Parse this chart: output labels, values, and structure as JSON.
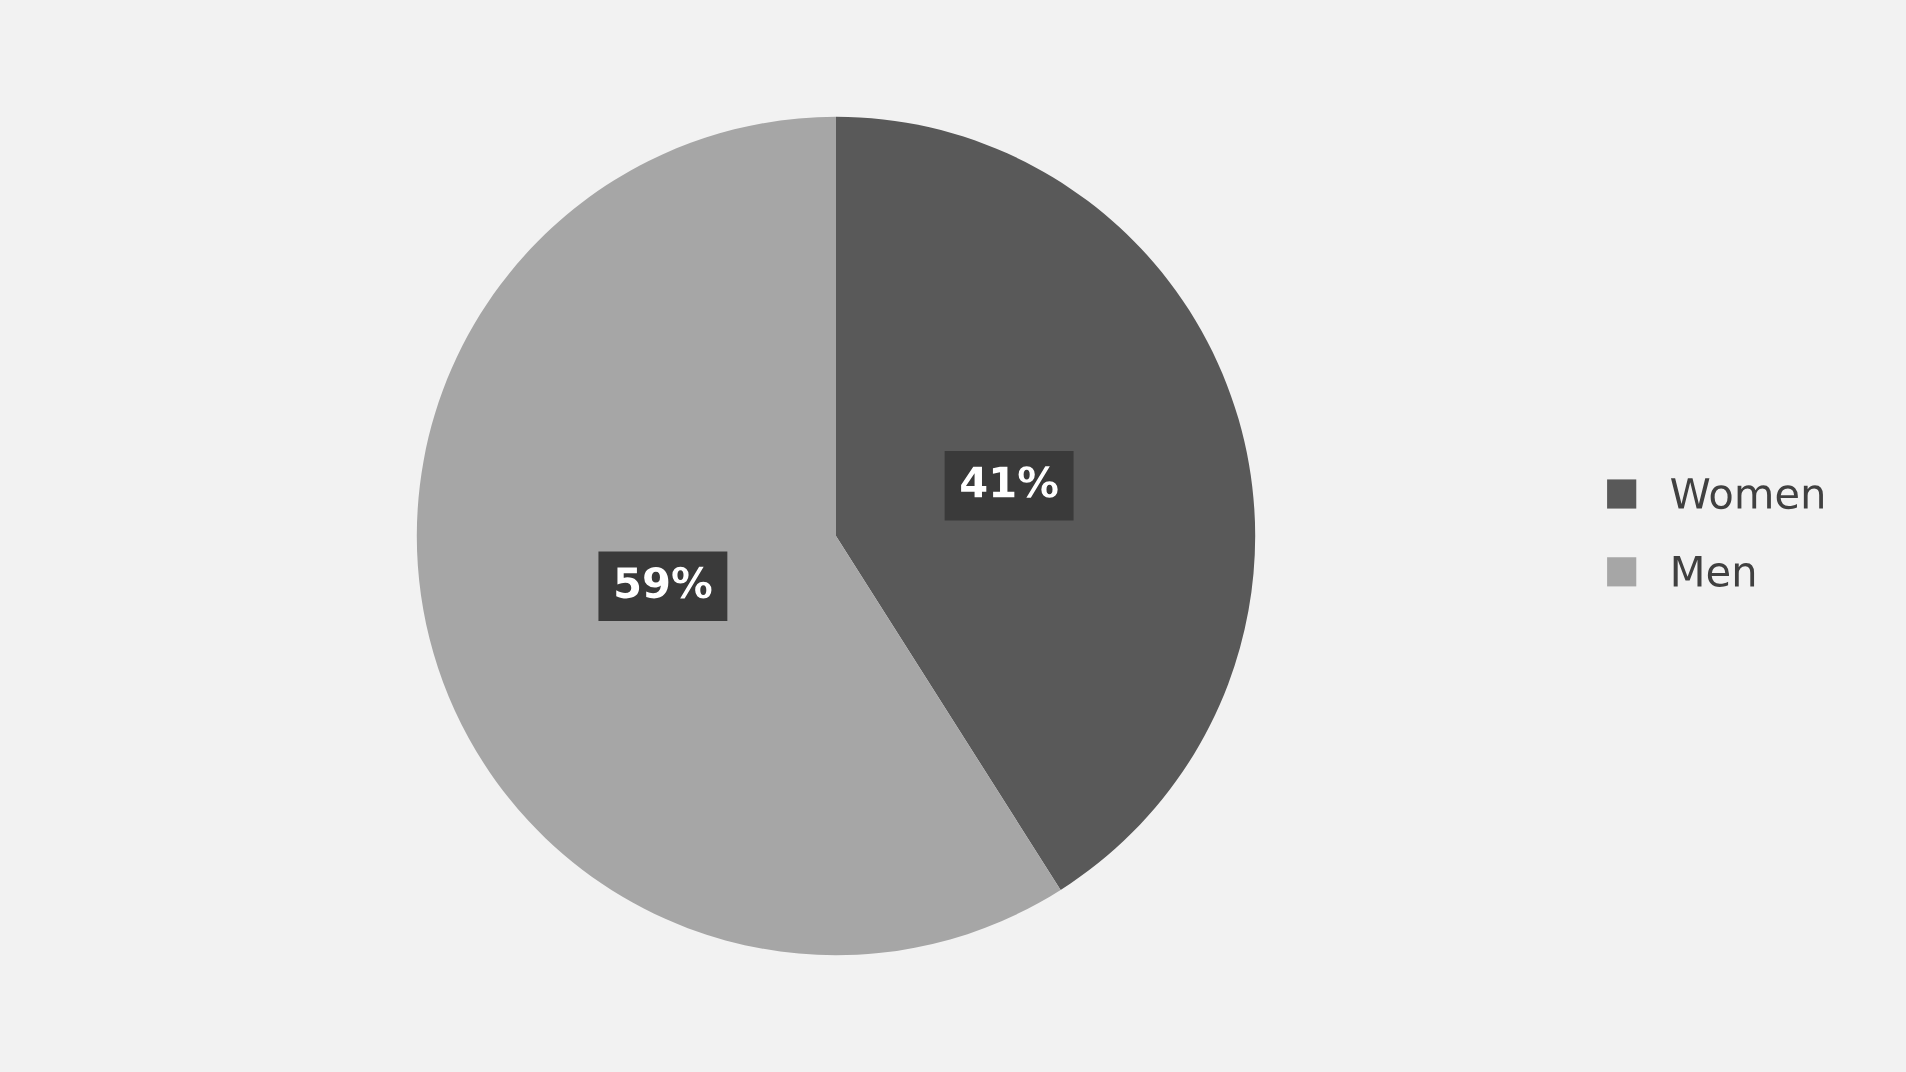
{
  "chart_data": {
    "type": "pie",
    "categories": [
      "Women",
      "Men"
    ],
    "values": [
      41,
      59
    ],
    "colors": [
      "#595959",
      "#a6a6a6"
    ],
    "value_labels": [
      "41%",
      "59%"
    ],
    "legend": "right"
  }
}
